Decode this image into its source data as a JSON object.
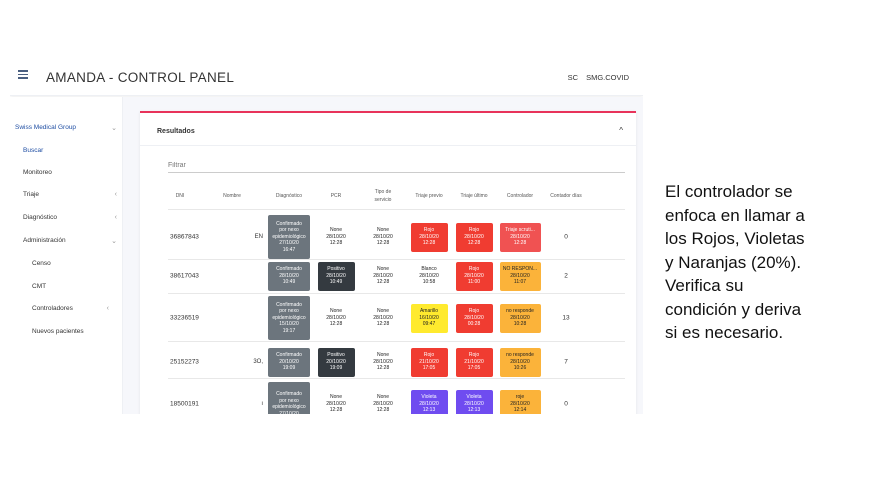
{
  "app": {
    "title": "AMANDA - CONTROL PANEL",
    "user_initials": "SC",
    "org": "SMG.COVID"
  },
  "sidebar": {
    "items": [
      {
        "label": "Swiss Medical Group",
        "chevron": "⌄",
        "kind": "group"
      },
      {
        "label": "Buscar",
        "chevron": "",
        "kind": "active"
      },
      {
        "label": "Monitoreo",
        "chevron": "",
        "kind": "item"
      },
      {
        "label": "Triaje",
        "chevron": "‹",
        "kind": "item"
      },
      {
        "label": "Diagnóstico",
        "chevron": "‹",
        "kind": "item"
      },
      {
        "label": "Administración",
        "chevron": "⌄",
        "kind": "item"
      },
      {
        "label": "Censo",
        "chevron": "",
        "kind": "sub"
      },
      {
        "label": "CMT",
        "chevron": "",
        "kind": "sub"
      },
      {
        "label": "Controladores",
        "chevron": "‹",
        "kind": "sub"
      },
      {
        "label": "Nuevos pacientes",
        "chevron": "",
        "kind": "sub"
      }
    ]
  },
  "panel": {
    "title": "Resultados",
    "caret": "^",
    "filter_placeholder": "Filtrar"
  },
  "table": {
    "headers": [
      {
        "key": "dni",
        "text": [
          "DNI"
        ]
      },
      {
        "key": "nombre",
        "text": [
          "Nombre"
        ]
      },
      {
        "key": "diagnostico",
        "text": [
          "Diagnóstico"
        ]
      },
      {
        "key": "pcr",
        "text": [
          "PCR"
        ]
      },
      {
        "key": "tipo",
        "text": [
          "Tipo de",
          "servicio"
        ]
      },
      {
        "key": "triaje_previo",
        "text": [
          "Triaje previo"
        ]
      },
      {
        "key": "triaje_ultimo",
        "text": [
          "Triaje último"
        ]
      },
      {
        "key": "controlador",
        "text": [
          "Controlador"
        ]
      },
      {
        "key": "contador",
        "text": [
          "Contador días"
        ]
      }
    ],
    "rows": [
      {
        "dni": "36867843",
        "name": "EN",
        "diag": {
          "lines": [
            "Confirmado",
            "por nexo",
            "epidemiológico",
            "27/10/20",
            "16:47"
          ],
          "color": "#6c757d"
        },
        "pcr": {
          "lines": [
            "None",
            "28/10/20",
            "12:28"
          ],
          "color": "#ffffff"
        },
        "tipo": {
          "lines": [
            "None",
            "28/10/20",
            "12:28"
          ],
          "color": "#ffffff"
        },
        "previo": {
          "lines": [
            "Rojo",
            "28/10/20",
            "12:28"
          ],
          "color": "#f03c31"
        },
        "ultimo": {
          "lines": [
            "Rojo",
            "28/10/20",
            "12:28"
          ],
          "color": "#f03c31"
        },
        "ctrl": {
          "lines": [
            "Triaje scruti...",
            "28/10/20",
            "12:28"
          ],
          "color": "#f05252"
        },
        "count": "0"
      },
      {
        "dni": "38617043",
        "name": "",
        "diag": {
          "lines": [
            "Confirmado",
            "28/10/20",
            "10:49"
          ],
          "color": "#6c757d"
        },
        "pcr": {
          "lines": [
            "Positivo",
            "28/10/20",
            "10:49"
          ],
          "color": "#343a40"
        },
        "tipo": {
          "lines": [
            "None",
            "28/10/20",
            "12:28"
          ],
          "color": "#ffffff"
        },
        "previo": {
          "lines": [
            "Blanco",
            "28/10/20",
            "10:58"
          ],
          "color": "#ffffff"
        },
        "ultimo": {
          "lines": [
            "Rojo",
            "28/10/20",
            "11:00"
          ],
          "color": "#f03c31"
        },
        "ctrl": {
          "lines": [
            "NO RESPON...",
            "28/10/20",
            "11:07"
          ],
          "color": "#fbb33a"
        },
        "count": "2"
      },
      {
        "dni": "33236519",
        "name": "",
        "diag": {
          "lines": [
            "Confirmado",
            "por nexo",
            "epidemiológico",
            "15/10/20",
            "19:17"
          ],
          "color": "#6c757d"
        },
        "pcr": {
          "lines": [
            "None",
            "28/10/20",
            "12:28"
          ],
          "color": "#ffffff"
        },
        "tipo": {
          "lines": [
            "None",
            "28/10/20",
            "12:28"
          ],
          "color": "#ffffff"
        },
        "previo": {
          "lines": [
            "Amarillo",
            "16/10/20",
            "09:47"
          ],
          "color": "#ffea2e"
        },
        "ultimo": {
          "lines": [
            "Rojo",
            "28/10/20",
            "00:28"
          ],
          "color": "#f03c31"
        },
        "ctrl": {
          "lines": [
            "no responde",
            "28/10/20",
            "10:28"
          ],
          "color": "#fbb33a"
        },
        "count": "13"
      },
      {
        "dni": "25152273",
        "name": "3O,",
        "diag": {
          "lines": [
            "Confirmado",
            "20/10/20",
            "19:09"
          ],
          "color": "#6c757d"
        },
        "pcr": {
          "lines": [
            "Positivo",
            "20/10/20",
            "19:09"
          ],
          "color": "#343a40"
        },
        "tipo": {
          "lines": [
            "None",
            "28/10/20",
            "12:28"
          ],
          "color": "#ffffff"
        },
        "previo": {
          "lines": [
            "Rojo",
            "21/10/20",
            "17:05"
          ],
          "color": "#f03c31"
        },
        "ultimo": {
          "lines": [
            "Rojo",
            "21/10/20",
            "17:05"
          ],
          "color": "#f03c31"
        },
        "ctrl": {
          "lines": [
            "no responde",
            "28/10/20",
            "10:26"
          ],
          "color": "#fbb33a"
        },
        "count": "7"
      },
      {
        "dni": "18500191",
        "name": "ı",
        "diag": {
          "lines": [
            "Confirmado",
            "por nexo",
            "epidemiológico",
            "27/10/20"
          ],
          "color": "#6c757d"
        },
        "pcr": {
          "lines": [
            "None",
            "28/10/20",
            "12:28"
          ],
          "color": "#ffffff"
        },
        "tipo": {
          "lines": [
            "None",
            "28/10/20",
            "12:28"
          ],
          "color": "#ffffff"
        },
        "previo": {
          "lines": [
            "Violeta",
            "28/10/20",
            "12:13"
          ],
          "color": "#6f4cf0"
        },
        "ultimo": {
          "lines": [
            "Violeta",
            "28/10/20",
            "12:13"
          ],
          "color": "#6f4cf0"
        },
        "ctrl": {
          "lines": [
            "roje",
            "28/10/20",
            "12:14"
          ],
          "color": "#fbb33a"
        },
        "count": "0"
      }
    ]
  },
  "annotation": {
    "lines": [
      "El controlador se",
      "enfoca en llamar a",
      "los Rojos, Violetas",
      "y Naranjas (20%).",
      "Verifica su",
      "condición y deriva",
      "si es necesario."
    ]
  },
  "colors": {
    "accent": "#e8335a",
    "link": "#1f4ea3"
  }
}
